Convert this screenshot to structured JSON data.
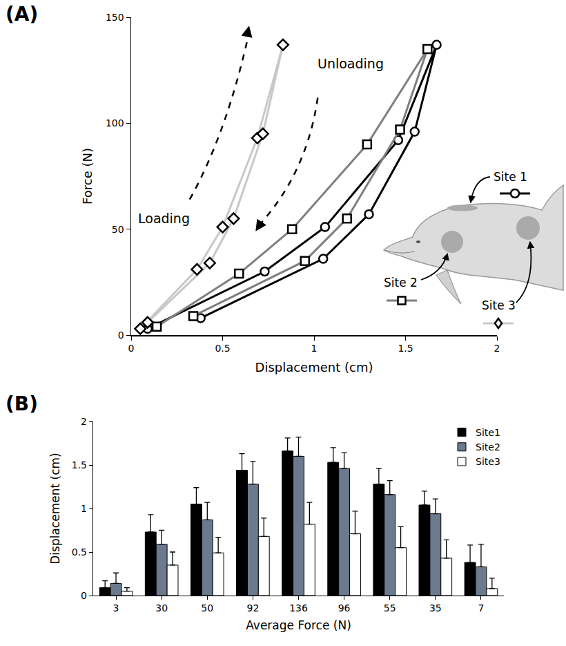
{
  "chart_data": [
    {
      "label": "(A)",
      "type": "line",
      "x_label": "Displacement (cm)",
      "y_label": "Force (N)",
      "xlim": [
        0,
        2
      ],
      "xticks": [
        0,
        0.5,
        1,
        1.5,
        2
      ],
      "ylim": [
        0,
        150
      ],
      "yticks": [
        0,
        50,
        100,
        150
      ],
      "grid": false,
      "annotations": [
        "Loading",
        "Unloading"
      ],
      "series": [
        {
          "name": "Site 1",
          "color": "#000000",
          "marker": "circle",
          "x": [
            0.09,
            0.73,
            1.06,
            1.46,
            1.67,
            1.55,
            1.3,
            1.05,
            0.38
          ],
          "values": [
            3,
            30,
            51,
            92,
            137,
            96,
            57,
            36,
            8
          ]
        },
        {
          "name": "Site 2",
          "color": "#7f7f7f",
          "marker": "square",
          "x": [
            0.14,
            0.59,
            0.88,
            1.29,
            1.62,
            1.47,
            1.18,
            0.95,
            0.34
          ],
          "values": [
            4,
            29,
            50,
            90,
            135,
            97,
            55,
            35,
            9
          ]
        },
        {
          "name": "Site 3",
          "color": "#c8c8c8",
          "marker": "diamond",
          "x": [
            0.05,
            0.36,
            0.5,
            0.69,
            0.83,
            0.72,
            0.56,
            0.43,
            0.09
          ],
          "values": [
            3,
            31,
            51,
            93,
            137,
            95,
            55,
            34,
            6
          ]
        }
      ]
    },
    {
      "label": "(B)",
      "type": "bar",
      "x_label": "Average Force (N)",
      "y_label": "Displacement (cm)",
      "categories": [
        "3",
        "30",
        "50",
        "92",
        "136",
        "96",
        "55",
        "35",
        "7"
      ],
      "ylim": [
        0,
        2
      ],
      "yticks": [
        0,
        0.5,
        1,
        1.5,
        2
      ],
      "grid": false,
      "legend": "top-right",
      "series": [
        {
          "name": "Site1",
          "color": "#000000",
          "values": [
            0.09,
            0.73,
            1.05,
            1.44,
            1.66,
            1.53,
            1.28,
            1.04,
            0.38
          ],
          "errors": [
            0.08,
            0.2,
            0.19,
            0.19,
            0.15,
            0.17,
            0.18,
            0.16,
            0.2
          ]
        },
        {
          "name": "Site2",
          "color": "#6b7a8f",
          "values": [
            0.14,
            0.59,
            0.87,
            1.28,
            1.6,
            1.46,
            1.16,
            0.94,
            0.33
          ],
          "errors": [
            0.12,
            0.16,
            0.2,
            0.26,
            0.22,
            0.18,
            0.16,
            0.17,
            0.26
          ]
        },
        {
          "name": "Site3",
          "color": "#ffffff",
          "values": [
            0.05,
            0.35,
            0.49,
            0.68,
            0.82,
            0.71,
            0.55,
            0.43,
            0.08
          ],
          "errors": [
            0.04,
            0.15,
            0.18,
            0.21,
            0.25,
            0.26,
            0.24,
            0.21,
            0.12
          ]
        }
      ]
    }
  ]
}
